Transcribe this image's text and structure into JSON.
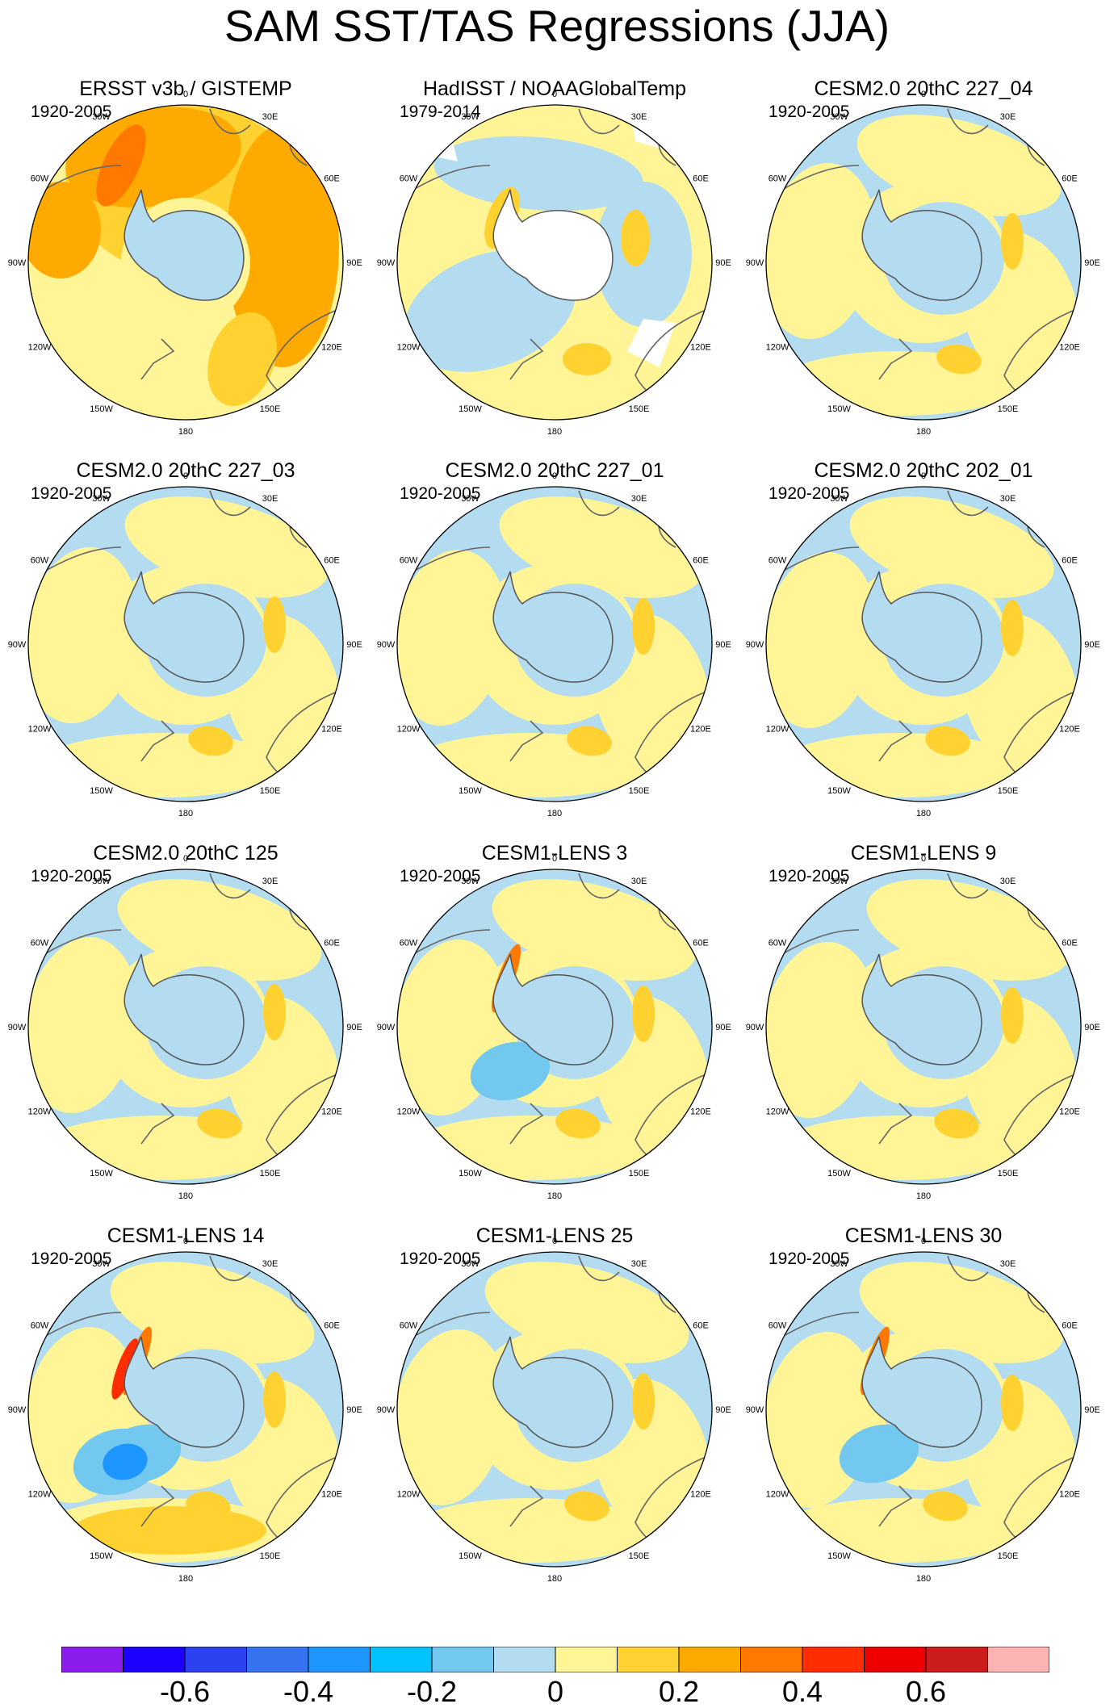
{
  "title": "SAM SST/TAS Regressions (JJA)",
  "lon_labels": [
    "0",
    "30E",
    "60E",
    "90E",
    "120E",
    "150E",
    "180",
    "150W",
    "120W",
    "90W",
    "60W",
    "30W"
  ],
  "panels": [
    {
      "title": "ERSST v3b / GISTEMP",
      "period": "1920-2005",
      "pattern": "warm"
    },
    {
      "title": "HadISST / NOAAGlobalTemp",
      "period": "1979-2014",
      "pattern": "mixed"
    },
    {
      "title": "CESM2.0 20thC 227_04",
      "period": "1920-2005",
      "pattern": "model"
    },
    {
      "title": "CESM2.0 20thC 227_03",
      "period": "1920-2005",
      "pattern": "model"
    },
    {
      "title": "CESM2.0 20thC 227_01",
      "period": "1920-2005",
      "pattern": "model"
    },
    {
      "title": "CESM2.0 20thC 202_01",
      "period": "1920-2005",
      "pattern": "model"
    },
    {
      "title": "CESM2.0 20thC 125",
      "period": "1920-2005",
      "pattern": "model"
    },
    {
      "title": "CESM1-LENS 3",
      "period": "1920-2005",
      "pattern": "cold-pacific"
    },
    {
      "title": "CESM1-LENS 9",
      "period": "1920-2005",
      "pattern": "model"
    },
    {
      "title": "CESM1-LENS 14",
      "period": "1920-2005",
      "pattern": "cold-pacific-strong"
    },
    {
      "title": "CESM1-LENS 25",
      "period": "1920-2005",
      "pattern": "model"
    },
    {
      "title": "CESM1-LENS 30",
      "period": "1920-2005",
      "pattern": "cold-pacific"
    }
  ],
  "colorbar": {
    "colors": [
      "#8c1cee",
      "#1c00ff",
      "#2c41f0",
      "#3673f0",
      "#1e96ff",
      "#00c3ff",
      "#73c8f0",
      "#b4dcf0",
      "#fff596",
      "#ffd232",
      "#ffaa00",
      "#ff7800",
      "#ff2d00",
      "#ee0000",
      "#cd1c1c",
      "#ffb4b4"
    ],
    "labels": [
      "-0.6",
      "-0.4",
      "-0.2",
      "0",
      "0.2",
      "0.4",
      "0.6"
    ]
  }
}
